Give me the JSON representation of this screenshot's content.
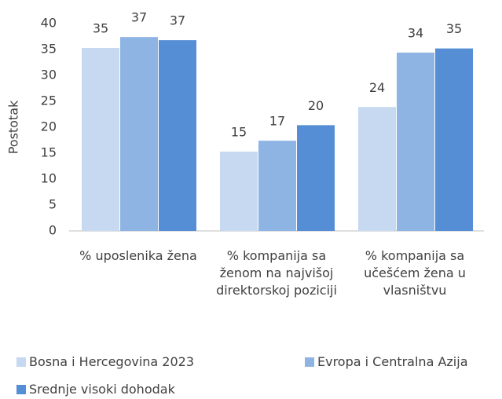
{
  "chart_data": {
    "type": "bar",
    "y_label": "Postotak",
    "categories": [
      "% uposlenika žena",
      "% kompanija sa ženom na najvišoj direktorskoj poziciji",
      "% kompanija sa učešćem žena u vlasništvu"
    ],
    "series": [
      {
        "name": "Bosna i Hercegovina 2023",
        "color": "#c6d9f1",
        "values": [
          35.3,
          15.3,
          23.9
        ],
        "value_labels": [
          "35",
          "15",
          "24"
        ]
      },
      {
        "name": "Evropa i Centralna Azija",
        "color": "#8eb4e3",
        "values": [
          37.4,
          17.4,
          34.4
        ],
        "value_labels": [
          "37",
          "17",
          "34"
        ]
      },
      {
        "name": "Srednje visoki dohodak",
        "color": "#558ed5",
        "values": [
          36.8,
          20.4,
          35.2
        ],
        "value_labels": [
          "37",
          "20",
          "35"
        ]
      }
    ],
    "ylim": [
      0,
      40
    ],
    "yticks": [
      0,
      5,
      10,
      15,
      20,
      25,
      30,
      35,
      40
    ],
    "grid": false
  }
}
